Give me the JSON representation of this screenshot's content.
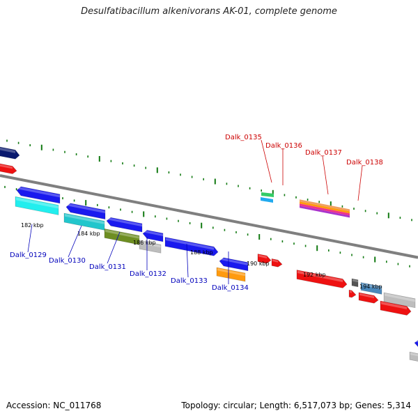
{
  "title": "Desulfatibacillum alkenivorans AK-01, complete genome",
  "footer": {
    "accession": "Accession: NC_011768",
    "summary": "Topology: circular; Length: 6,517,073 bp; Genes: 5,314"
  },
  "scale_labels": [
    "182 kbp",
    "184 kbp",
    "186 kbp",
    "188 kbp",
    "190 kbp",
    "192 kbp",
    "194 kbp"
  ],
  "gene_labels": {
    "minus": [
      "Dalk_0129",
      "Dalk_0130",
      "Dalk_0131",
      "Dalk_0132",
      "Dalk_0133",
      "Dalk_0134"
    ],
    "plus": [
      "Dalk_0135",
      "Dalk_0136",
      "Dalk_0137",
      "Dalk_0138"
    ]
  },
  "colors": {
    "minus_label": "#0000bb",
    "plus_label": "#cc0000",
    "axis": "#7f7f7f",
    "tick": "#117a11",
    "blue": "#1a1aee",
    "navy": "#0a1a6e",
    "red": "#ee1111",
    "cyan": "#22eeee",
    "teal": "#22c6cc",
    "olive": "#6e8e22",
    "silver": "#bdbdbd",
    "orange": "#ff9a0e",
    "steel": "#4a88bb",
    "green": "#33cc66",
    "darkgray": "#555555",
    "pink": "#ee3388"
  }
}
